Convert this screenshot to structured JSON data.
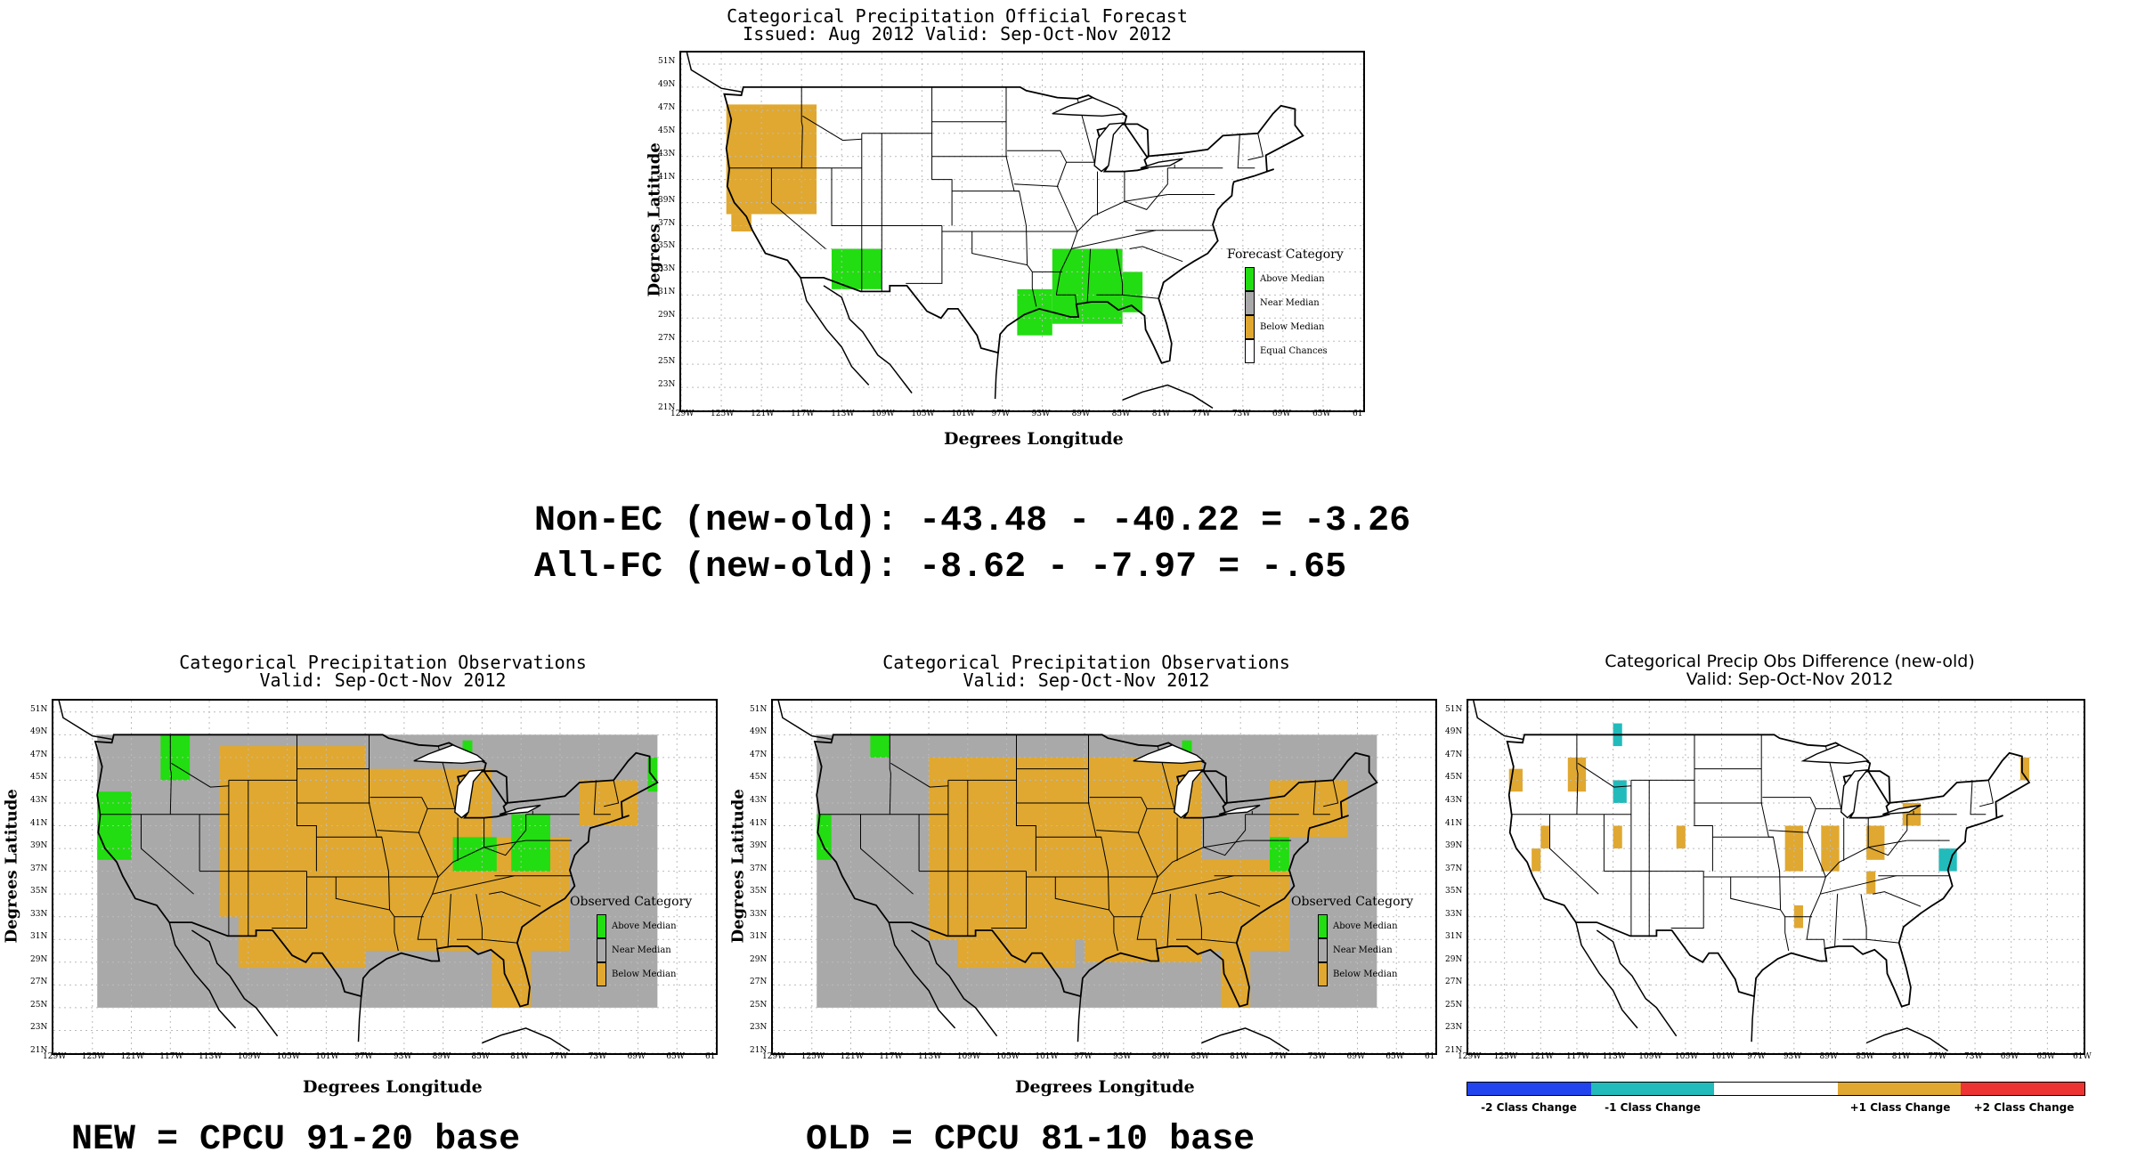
{
  "colors": {
    "above": "#22dd11",
    "near": "#a9a9a9",
    "below": "#e0a830",
    "equal": "#ffffff",
    "minus2": "#2244ee",
    "minus1": "#22bbbb",
    "plus1": "#e0a830",
    "plus2": "#ee3333"
  },
  "forecast": {
    "title1": "Categorical Precipitation Official Forecast",
    "title2": "Issued: Aug 2012 Valid: Sep-Oct-Nov 2012",
    "xlabel": "Degrees Longitude",
    "ylabel": "Degrees Latitude",
    "legend_title": "Forecast Category",
    "legend": [
      "Above Median",
      "Near Median",
      "Below Median",
      "Equal Chances"
    ]
  },
  "stats": {
    "line1": "Non-EC (new-old): -43.48 - -40.22 = -3.26",
    "line2": "All-FC (new-old): -8.62 - -7.97 = -.65"
  },
  "obs_new": {
    "title1": "Categorical Precipitation Observations",
    "title2": "Valid: Sep-Oct-Nov 2012",
    "xlabel": "Degrees Longitude",
    "ylabel": "Degrees Latitude",
    "legend_title": "Observed Category",
    "legend": [
      "Above Median",
      "Near Median",
      "Below Median"
    ],
    "caption": "NEW = CPCU 91-20 base"
  },
  "obs_old": {
    "title1": "Categorical Precipitation Observations",
    "title2": "Valid: Sep-Oct-Nov 2012",
    "xlabel": "Degrees Longitude",
    "ylabel": "Degrees Latitude",
    "legend_title": "Observed Category",
    "legend": [
      "Above Median",
      "Near Median",
      "Below Median"
    ],
    "caption": "OLD = CPCU 81-10 base"
  },
  "diff": {
    "title1": "Categorical Precip Obs Difference (new-old)",
    "title2": "Valid: Sep-Oct-Nov 2012",
    "colorbar_labels": [
      "-2 Class Change",
      "-1 Class Change",
      "+1 Class Change",
      "+2 Class Change"
    ]
  },
  "axis_ticks": {
    "lat": [
      "51N",
      "49N",
      "47N",
      "45N",
      "43N",
      "41N",
      "39N",
      "37N",
      "35N",
      "33N",
      "31N",
      "29N",
      "27N",
      "25N",
      "23N",
      "21N"
    ],
    "lon": [
      "129W",
      "125W",
      "121W",
      "117W",
      "113W",
      "109W",
      "105W",
      "101W",
      "97W",
      "93W",
      "89W",
      "85W",
      "81W",
      "77W",
      "73W",
      "69W",
      "65W",
      "61"
    ],
    "lon_diff": [
      "129W",
      "125W",
      "121W",
      "117W",
      "113W",
      "109W",
      "105W",
      "101W",
      "97W",
      "93W",
      "89W",
      "85W",
      "81W",
      "77W",
      "73W",
      "69W",
      "65W",
      "61W"
    ]
  },
  "map_data": {
    "forecast_cells": [
      {
        "cat": "below",
        "lon": [
          -124.5,
          -115.5
        ],
        "lat": [
          38,
          47.5
        ]
      },
      {
        "cat": "below",
        "lon": [
          -124,
          -122
        ],
        "lat": [
          36.5,
          38
        ]
      },
      {
        "cat": "above",
        "lon": [
          -114,
          -109
        ],
        "lat": [
          31.5,
          35
        ]
      },
      {
        "cat": "above",
        "lon": [
          -92,
          -85
        ],
        "lat": [
          28.5,
          35
        ]
      },
      {
        "cat": "above",
        "lon": [
          -85,
          -83
        ],
        "lat": [
          29.5,
          33
        ]
      },
      {
        "cat": "above",
        "lon": [
          -95.5,
          -92
        ],
        "lat": [
          27.5,
          31.5
        ]
      }
    ],
    "obs_new_cells": [
      {
        "cat": "near",
        "lon": [
          -124.5,
          -67
        ],
        "lat": [
          25,
          49
        ]
      },
      {
        "cat": "below",
        "lon": [
          -112,
          -97
        ],
        "lat": [
          33,
          48
        ]
      },
      {
        "cat": "below",
        "lon": [
          -97,
          -84
        ],
        "lat": [
          30,
          46
        ]
      },
      {
        "cat": "below",
        "lon": [
          -84,
          -76
        ],
        "lat": [
          30,
          40
        ]
      },
      {
        "cat": "below",
        "lon": [
          -110,
          -97
        ],
        "lat": [
          28.5,
          33
        ]
      },
      {
        "cat": "below",
        "lon": [
          -84,
          -80
        ],
        "lat": [
          25,
          30
        ]
      },
      {
        "cat": "below",
        "lon": [
          -75,
          -69
        ],
        "lat": [
          41,
          45
        ]
      },
      {
        "cat": "above",
        "lon": [
          -124.5,
          -121
        ],
        "lat": [
          38,
          44
        ]
      },
      {
        "cat": "above",
        "lon": [
          -118,
          -115
        ],
        "lat": [
          45,
          49
        ]
      },
      {
        "cat": "above",
        "lon": [
          -88,
          -83.5
        ],
        "lat": [
          37,
          40
        ]
      },
      {
        "cat": "above",
        "lon": [
          -82,
          -78
        ],
        "lat": [
          37,
          42
        ]
      },
      {
        "cat": "above",
        "lon": [
          -68,
          -67
        ],
        "lat": [
          44,
          47
        ]
      },
      {
        "cat": "above",
        "lon": [
          -87,
          -86
        ],
        "lat": [
          47,
          48.5
        ]
      }
    ],
    "obs_old_cells": [
      {
        "cat": "near",
        "lon": [
          -124.5,
          -67
        ],
        "lat": [
          25,
          49
        ]
      },
      {
        "cat": "below",
        "lon": [
          -113,
          -97
        ],
        "lat": [
          31,
          47
        ]
      },
      {
        "cat": "below",
        "lon": [
          -97,
          -85
        ],
        "lat": [
          29,
          47
        ]
      },
      {
        "cat": "below",
        "lon": [
          -85,
          -76
        ],
        "lat": [
          30,
          38
        ]
      },
      {
        "cat": "below",
        "lon": [
          -110,
          -98
        ],
        "lat": [
          28.5,
          31
        ]
      },
      {
        "cat": "below",
        "lon": [
          -83,
          -80
        ],
        "lat": [
          25,
          30
        ]
      },
      {
        "cat": "below",
        "lon": [
          -78,
          -70
        ],
        "lat": [
          40,
          45
        ]
      },
      {
        "cat": "above",
        "lon": [
          -124.5,
          -123
        ],
        "lat": [
          38,
          42
        ]
      },
      {
        "cat": "above",
        "lon": [
          -119,
          -117
        ],
        "lat": [
          47,
          49
        ]
      },
      {
        "cat": "above",
        "lon": [
          -78,
          -76
        ],
        "lat": [
          37,
          40
        ]
      },
      {
        "cat": "above",
        "lon": [
          -87,
          -86
        ],
        "lat": [
          47,
          48.5
        ]
      }
    ],
    "diff_cells": [
      {
        "cat": "plus1",
        "lon": [
          -124.5,
          -123
        ],
        "lat": [
          44,
          46
        ]
      },
      {
        "cat": "plus1",
        "lon": [
          -118,
          -116
        ],
        "lat": [
          44,
          47
        ]
      },
      {
        "cat": "plus1",
        "lon": [
          -122,
          -121
        ],
        "lat": [
          37,
          39
        ]
      },
      {
        "cat": "plus1",
        "lon": [
          -121,
          -120
        ],
        "lat": [
          39,
          41
        ]
      },
      {
        "cat": "plus1",
        "lon": [
          -113,
          -112
        ],
        "lat": [
          39,
          41
        ]
      },
      {
        "cat": "plus1",
        "lon": [
          -106,
          -105
        ],
        "lat": [
          39,
          41
        ]
      },
      {
        "cat": "plus1",
        "lon": [
          -94,
          -92
        ],
        "lat": [
          37,
          41
        ]
      },
      {
        "cat": "plus1",
        "lon": [
          -90,
          -88
        ],
        "lat": [
          37,
          41
        ]
      },
      {
        "cat": "plus1",
        "lon": [
          -85,
          -83
        ],
        "lat": [
          38,
          41
        ]
      },
      {
        "cat": "plus1",
        "lon": [
          -81,
          -79
        ],
        "lat": [
          41,
          43
        ]
      },
      {
        "cat": "plus1",
        "lon": [
          -85,
          -84
        ],
        "lat": [
          35,
          37
        ]
      },
      {
        "cat": "plus1",
        "lon": [
          -93,
          -92
        ],
        "lat": [
          32,
          34
        ]
      },
      {
        "cat": "plus1",
        "lon": [
          -68,
          -67
        ],
        "lat": [
          45,
          47
        ]
      },
      {
        "cat": "minus1",
        "lon": [
          -113,
          -112
        ],
        "lat": [
          48,
          50
        ]
      },
      {
        "cat": "minus1",
        "lon": [
          -113,
          -111.5
        ],
        "lat": [
          43,
          45
        ]
      },
      {
        "cat": "minus1",
        "lon": [
          -77,
          -75
        ],
        "lat": [
          37,
          39
        ]
      }
    ]
  }
}
